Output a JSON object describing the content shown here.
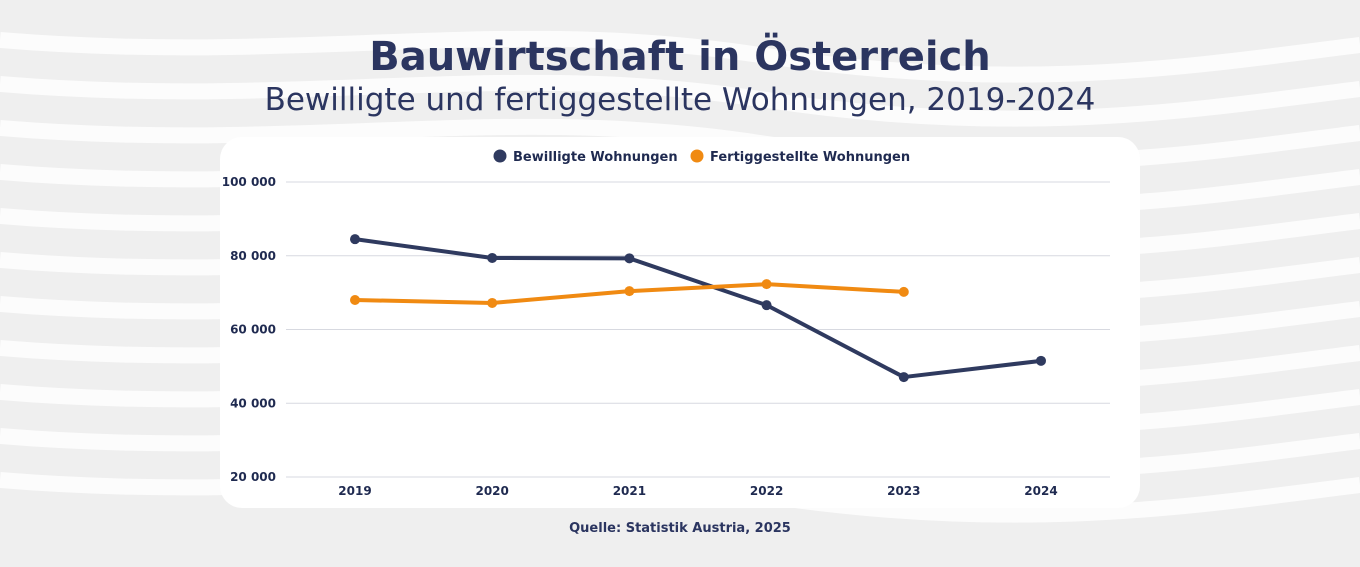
{
  "header": {
    "title": "Bauwirtschaft in Österreich",
    "subtitle": "Bewilligte und fertiggestellte Wohnungen, 2019-2024"
  },
  "source": "Quelle: Statistik Austria, 2025",
  "chart_data": {
    "type": "line",
    "categories": [
      "2019",
      "2020",
      "2021",
      "2022",
      "2023",
      "2024"
    ],
    "ylim": [
      20000,
      100000
    ],
    "yticks": [
      20000,
      40000,
      60000,
      80000,
      100000
    ],
    "ytick_labels": [
      "20 000",
      "40 000",
      "60 000",
      "80 000",
      "100 000"
    ],
    "grid": true,
    "legend_position": "top",
    "series": [
      {
        "name": "Bewilligte Wohnungen",
        "color": "#2f3a5f",
        "values": [
          84500,
          79400,
          79300,
          66600,
          47100,
          51500
        ]
      },
      {
        "name": "Fertiggestellte Wohnungen",
        "color": "#f08a12",
        "values": [
          68000,
          67200,
          70400,
          72300,
          70200,
          null
        ]
      }
    ]
  }
}
